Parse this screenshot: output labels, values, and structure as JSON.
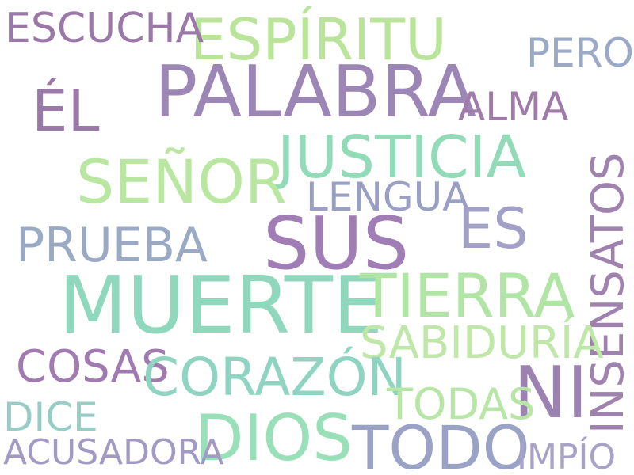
{
  "words": {
    "espiritu": {
      "text": "ESPÍRITU",
      "color": "#b9e49a"
    },
    "palabra": {
      "text": "PALABRA",
      "color": "#9c86b6"
    },
    "escucha": {
      "text": "ESCUCHA",
      "color": "#9a78a8"
    },
    "pero": {
      "text": "PERO",
      "color": "#9aa9c6"
    },
    "el": {
      "text": "ÉL",
      "color": "#9a78a8"
    },
    "alma": {
      "text": "ALMA",
      "color": "#a07aa8"
    },
    "justicia": {
      "text": "JUSTICIA",
      "color": "#92dbb8"
    },
    "senor": {
      "text": "SEÑOR",
      "color": "#b9e6a0"
    },
    "insensatos": {
      "text": "INSENSATOS",
      "color": "#9f82ae"
    },
    "lengua": {
      "text": "LENGUA",
      "color": "#9aa0c4"
    },
    "es": {
      "text": "ES",
      "color": "#a3a0c8"
    },
    "prueba": {
      "text": "PRUEBA",
      "color": "#9aaac4"
    },
    "sus": {
      "text": "SUS",
      "color": "#a07db4"
    },
    "muerte": {
      "text": "MUERTE",
      "color": "#8fd8bd"
    },
    "tierra": {
      "text": "TIERRA",
      "color": "#b1e5a5"
    },
    "sabiduria": {
      "text": "SABIDURÍA",
      "color": "#bfe7a8"
    },
    "cosas": {
      "text": "COSAS",
      "color": "#a07ab0"
    },
    "corazon": {
      "text": "CORAZÓN",
      "color": "#8fd4c0"
    },
    "ni": {
      "text": "NI",
      "color": "#9c82b0"
    },
    "dice": {
      "text": "DICE",
      "color": "#98cdc6"
    },
    "todas": {
      "text": "TODAS",
      "color": "#b8e6a6"
    },
    "dios": {
      "text": "DIOS",
      "color": "#99e0b8"
    },
    "todo": {
      "text": "TODO",
      "color": "#9aa2c6"
    },
    "acusadora": {
      "text": "ACUSADORA",
      "color": "#a39ac4"
    },
    "impio": {
      "text": "IMPÍO",
      "color": "#a7a2c6"
    }
  }
}
